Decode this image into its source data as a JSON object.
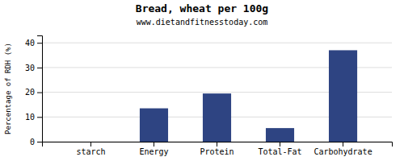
{
  "chart_data": {
    "type": "bar",
    "title": "Bread, wheat per 100g",
    "subtitle": "www.dietandfitnesstoday.com",
    "categories": [
      "starch",
      "Energy",
      "Protein",
      "Total-Fat",
      "Carbohydrate"
    ],
    "values": [
      0,
      13.5,
      19.5,
      5.5,
      37.0
    ],
    "color": "#2e4482",
    "ylabel": "Percentage of RDH (%)",
    "ylim": [
      0,
      43
    ],
    "yticks": [
      0,
      10,
      20,
      30,
      40
    ],
    "grid": true
  }
}
